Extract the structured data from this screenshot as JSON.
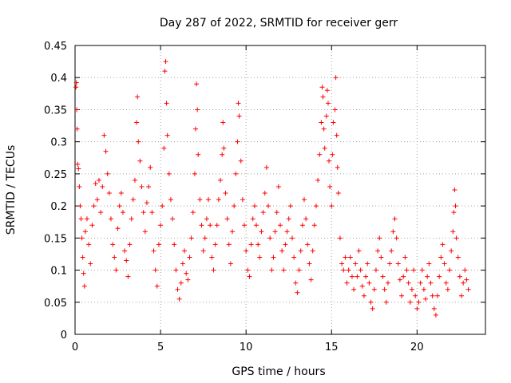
{
  "chart_data": {
    "type": "scatter",
    "title": "Day 287 of 2022, SRMTID for receiver gerr",
    "xlabel": "GPS time / hours",
    "ylabel": "SRMTID / TECUs",
    "xlim": [
      0,
      24
    ],
    "ylim": [
      0,
      0.45
    ],
    "x_ticks": [
      0,
      5,
      10,
      15,
      20
    ],
    "x_tick_labels": [
      "0",
      "5",
      "10",
      "15",
      "20"
    ],
    "y_ticks": [
      0,
      0.05,
      0.1,
      0.15,
      0.2,
      0.25,
      0.3,
      0.35,
      0.4,
      0.45
    ],
    "y_tick_labels": [
      "0",
      "0.05",
      "0.1",
      "0.15",
      "0.2",
      "0.25",
      "0.3",
      "0.35",
      "0.4",
      "0.45"
    ],
    "grid": true,
    "marker": "plus",
    "series_color": "#ff0000",
    "series": [
      {
        "name": "SRMTID",
        "points": [
          [
            0.05,
            0.385
          ],
          [
            0.08,
            0.392
          ],
          [
            0.1,
            0.35
          ],
          [
            0.12,
            0.32
          ],
          [
            0.15,
            0.265
          ],
          [
            0.2,
            0.258
          ],
          [
            0.25,
            0.23
          ],
          [
            0.3,
            0.2
          ],
          [
            0.35,
            0.18
          ],
          [
            0.4,
            0.15
          ],
          [
            0.45,
            0.12
          ],
          [
            0.5,
            0.095
          ],
          [
            0.55,
            0.075
          ],
          [
            0.6,
            0.16
          ],
          [
            0.7,
            0.18
          ],
          [
            0.8,
            0.14
          ],
          [
            0.9,
            0.11
          ],
          [
            1.0,
            0.17
          ],
          [
            1.1,
            0.2
          ],
          [
            1.2,
            0.235
          ],
          [
            1.3,
            0.21
          ],
          [
            1.4,
            0.24
          ],
          [
            1.5,
            0.19
          ],
          [
            1.6,
            0.23
          ],
          [
            1.7,
            0.31
          ],
          [
            1.8,
            0.285
          ],
          [
            1.9,
            0.25
          ],
          [
            2.0,
            0.22
          ],
          [
            2.1,
            0.18
          ],
          [
            2.2,
            0.14
          ],
          [
            2.3,
            0.12
          ],
          [
            2.4,
            0.1
          ],
          [
            2.5,
            0.165
          ],
          [
            2.6,
            0.2
          ],
          [
            2.7,
            0.22
          ],
          [
            2.8,
            0.19
          ],
          [
            2.9,
            0.13
          ],
          [
            3.0,
            0.115
          ],
          [
            3.1,
            0.09
          ],
          [
            3.2,
            0.14
          ],
          [
            3.3,
            0.18
          ],
          [
            3.4,
            0.21
          ],
          [
            3.5,
            0.24
          ],
          [
            3.6,
            0.33
          ],
          [
            3.65,
            0.37
          ],
          [
            3.7,
            0.3
          ],
          [
            3.8,
            0.27
          ],
          [
            3.9,
            0.23
          ],
          [
            4.0,
            0.19
          ],
          [
            4.1,
            0.16
          ],
          [
            4.2,
            0.205
          ],
          [
            4.3,
            0.23
          ],
          [
            4.4,
            0.26
          ],
          [
            4.5,
            0.19
          ],
          [
            4.6,
            0.13
          ],
          [
            4.7,
            0.1
          ],
          [
            4.8,
            0.075
          ],
          [
            4.9,
            0.14
          ],
          [
            5.0,
            0.17
          ],
          [
            5.1,
            0.2
          ],
          [
            5.2,
            0.29
          ],
          [
            5.25,
            0.41
          ],
          [
            5.3,
            0.425
          ],
          [
            5.35,
            0.36
          ],
          [
            5.4,
            0.31
          ],
          [
            5.5,
            0.25
          ],
          [
            5.6,
            0.21
          ],
          [
            5.7,
            0.18
          ],
          [
            5.8,
            0.14
          ],
          [
            5.9,
            0.1
          ],
          [
            6.0,
            0.07
          ],
          [
            6.1,
            0.055
          ],
          [
            6.2,
            0.08
          ],
          [
            6.3,
            0.11
          ],
          [
            6.4,
            0.13
          ],
          [
            6.5,
            0.095
          ],
          [
            6.6,
            0.085
          ],
          [
            6.7,
            0.12
          ],
          [
            6.8,
            0.15
          ],
          [
            6.9,
            0.19
          ],
          [
            7.0,
            0.25
          ],
          [
            7.05,
            0.32
          ],
          [
            7.1,
            0.39
          ],
          [
            7.15,
            0.35
          ],
          [
            7.2,
            0.28
          ],
          [
            7.3,
            0.21
          ],
          [
            7.4,
            0.17
          ],
          [
            7.5,
            0.13
          ],
          [
            7.6,
            0.15
          ],
          [
            7.7,
            0.18
          ],
          [
            7.8,
            0.21
          ],
          [
            7.9,
            0.17
          ],
          [
            8.0,
            0.12
          ],
          [
            8.1,
            0.1
          ],
          [
            8.2,
            0.14
          ],
          [
            8.3,
            0.17
          ],
          [
            8.4,
            0.21
          ],
          [
            8.5,
            0.24
          ],
          [
            8.6,
            0.28
          ],
          [
            8.65,
            0.33
          ],
          [
            8.7,
            0.29
          ],
          [
            8.8,
            0.22
          ],
          [
            8.9,
            0.18
          ],
          [
            9.0,
            0.14
          ],
          [
            9.1,
            0.11
          ],
          [
            9.2,
            0.16
          ],
          [
            9.3,
            0.2
          ],
          [
            9.4,
            0.25
          ],
          [
            9.5,
            0.3
          ],
          [
            9.55,
            0.36
          ],
          [
            9.6,
            0.34
          ],
          [
            9.7,
            0.27
          ],
          [
            9.8,
            0.21
          ],
          [
            9.9,
            0.17
          ],
          [
            10.0,
            0.13
          ],
          [
            10.1,
            0.1
          ],
          [
            10.2,
            0.09
          ],
          [
            10.3,
            0.14
          ],
          [
            10.4,
            0.18
          ],
          [
            10.5,
            0.2
          ],
          [
            10.6,
            0.17
          ],
          [
            10.7,
            0.14
          ],
          [
            10.8,
            0.12
          ],
          [
            10.9,
            0.16
          ],
          [
            11.0,
            0.19
          ],
          [
            11.1,
            0.22
          ],
          [
            11.2,
            0.26
          ],
          [
            11.3,
            0.2
          ],
          [
            11.4,
            0.15
          ],
          [
            11.5,
            0.1
          ],
          [
            11.6,
            0.12
          ],
          [
            11.7,
            0.16
          ],
          [
            11.8,
            0.19
          ],
          [
            11.9,
            0.23
          ],
          [
            12.0,
            0.17
          ],
          [
            12.1,
            0.13
          ],
          [
            12.2,
            0.1
          ],
          [
            12.3,
            0.14
          ],
          [
            12.4,
            0.16
          ],
          [
            12.5,
            0.18
          ],
          [
            12.6,
            0.2
          ],
          [
            12.7,
            0.15
          ],
          [
            12.8,
            0.12
          ],
          [
            12.9,
            0.08
          ],
          [
            13.0,
            0.065
          ],
          [
            13.1,
            0.1
          ],
          [
            13.2,
            0.13
          ],
          [
            13.3,
            0.17
          ],
          [
            13.4,
            0.21
          ],
          [
            13.5,
            0.18
          ],
          [
            13.6,
            0.14
          ],
          [
            13.7,
            0.11
          ],
          [
            13.8,
            0.085
          ],
          [
            13.9,
            0.13
          ],
          [
            14.0,
            0.17
          ],
          [
            14.1,
            0.2
          ],
          [
            14.2,
            0.24
          ],
          [
            14.3,
            0.28
          ],
          [
            14.4,
            0.33
          ],
          [
            14.45,
            0.385
          ],
          [
            14.5,
            0.37
          ],
          [
            14.55,
            0.32
          ],
          [
            14.6,
            0.29
          ],
          [
            14.7,
            0.34
          ],
          [
            14.75,
            0.38
          ],
          [
            14.8,
            0.36
          ],
          [
            14.85,
            0.27
          ],
          [
            14.9,
            0.23
          ],
          [
            15.0,
            0.2
          ],
          [
            15.05,
            0.28
          ],
          [
            15.1,
            0.33
          ],
          [
            15.2,
            0.35
          ],
          [
            15.25,
            0.4
          ],
          [
            15.3,
            0.31
          ],
          [
            15.35,
            0.26
          ],
          [
            15.4,
            0.22
          ],
          [
            15.5,
            0.15
          ],
          [
            15.6,
            0.11
          ],
          [
            15.7,
            0.1
          ],
          [
            15.8,
            0.12
          ],
          [
            15.9,
            0.08
          ],
          [
            16.0,
            0.1
          ],
          [
            16.1,
            0.12
          ],
          [
            16.2,
            0.09
          ],
          [
            16.3,
            0.07
          ],
          [
            16.4,
            0.11
          ],
          [
            16.5,
            0.09
          ],
          [
            16.6,
            0.13
          ],
          [
            16.7,
            0.1
          ],
          [
            16.8,
            0.075
          ],
          [
            16.9,
            0.06
          ],
          [
            17.0,
            0.09
          ],
          [
            17.1,
            0.11
          ],
          [
            17.2,
            0.08
          ],
          [
            17.3,
            0.05
          ],
          [
            17.4,
            0.04
          ],
          [
            17.5,
            0.07
          ],
          [
            17.6,
            0.1
          ],
          [
            17.7,
            0.13
          ],
          [
            17.8,
            0.15
          ],
          [
            17.9,
            0.12
          ],
          [
            18.0,
            0.09
          ],
          [
            18.1,
            0.07
          ],
          [
            18.2,
            0.05
          ],
          [
            18.3,
            0.08
          ],
          [
            18.4,
            0.11
          ],
          [
            18.5,
            0.13
          ],
          [
            18.6,
            0.16
          ],
          [
            18.7,
            0.18
          ],
          [
            18.8,
            0.15
          ],
          [
            18.9,
            0.11
          ],
          [
            19.0,
            0.085
          ],
          [
            19.1,
            0.06
          ],
          [
            19.2,
            0.09
          ],
          [
            19.3,
            0.12
          ],
          [
            19.4,
            0.1
          ],
          [
            19.5,
            0.08
          ],
          [
            19.6,
            0.05
          ],
          [
            19.7,
            0.07
          ],
          [
            19.8,
            0.1
          ],
          [
            19.9,
            0.06
          ],
          [
            20.0,
            0.04
          ],
          [
            20.1,
            0.05
          ],
          [
            20.2,
            0.08
          ],
          [
            20.3,
            0.1
          ],
          [
            20.4,
            0.07
          ],
          [
            20.5,
            0.055
          ],
          [
            20.6,
            0.09
          ],
          [
            20.7,
            0.11
          ],
          [
            20.8,
            0.08
          ],
          [
            20.9,
            0.06
          ],
          [
            21.0,
            0.04
          ],
          [
            21.1,
            0.03
          ],
          [
            21.2,
            0.06
          ],
          [
            21.3,
            0.09
          ],
          [
            21.4,
            0.12
          ],
          [
            21.5,
            0.14
          ],
          [
            21.6,
            0.11
          ],
          [
            21.7,
            0.08
          ],
          [
            21.8,
            0.07
          ],
          [
            21.9,
            0.1
          ],
          [
            22.0,
            0.13
          ],
          [
            22.1,
            0.16
          ],
          [
            22.15,
            0.19
          ],
          [
            22.2,
            0.225
          ],
          [
            22.25,
            0.2
          ],
          [
            22.3,
            0.15
          ],
          [
            22.4,
            0.12
          ],
          [
            22.5,
            0.09
          ],
          [
            22.6,
            0.06
          ],
          [
            22.7,
            0.08
          ],
          [
            22.8,
            0.1
          ],
          [
            22.9,
            0.085
          ],
          [
            23.0,
            0.07
          ]
        ]
      }
    ]
  }
}
